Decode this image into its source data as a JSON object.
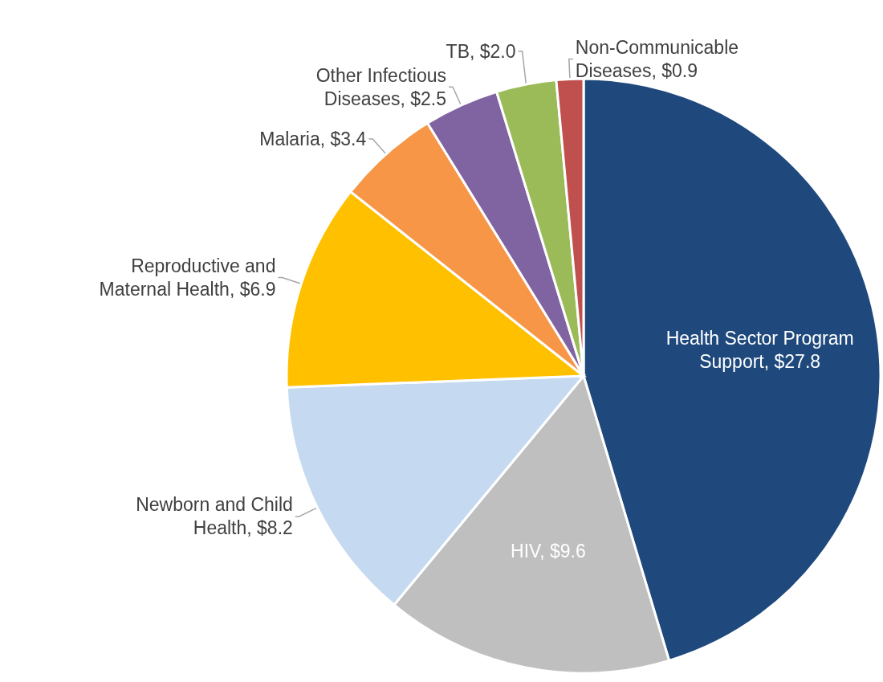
{
  "chart_data": {
    "type": "pie",
    "categories": [
      "Health Sector Program Support",
      "HIV",
      "Newborn and Child Health",
      "Reproductive and Maternal Health",
      "Malaria",
      "Other Infectious Diseases",
      "TB",
      "Non-Communicable Diseases"
    ],
    "values": [
      27.8,
      9.6,
      8.2,
      6.9,
      3.4,
      2.5,
      2.0,
      0.9
    ],
    "value_labels": [
      "$27.8",
      "$9.6",
      "$8.2",
      "$6.9",
      "$3.4",
      "$2.5",
      "$2.0",
      "$0.9"
    ],
    "colors": [
      "#1f497d",
      "#bfbfbf",
      "#c5d9f1",
      "#ffc000",
      "#f79646",
      "#8064a2",
      "#9bbb59",
      "#c0504d"
    ]
  }
}
